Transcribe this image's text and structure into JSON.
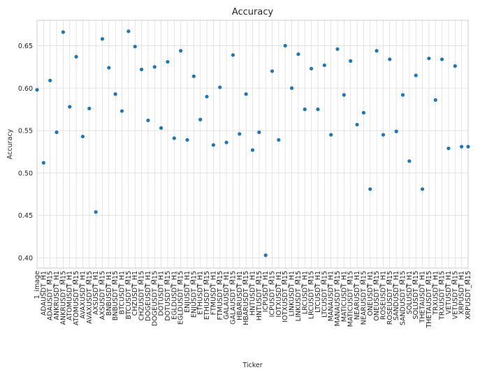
{
  "chart_data": {
    "type": "scatter",
    "title": "Accuracy",
    "xlabel": "Ticker",
    "ylabel": "Accuracy",
    "ylim": [
      0.388,
      0.68
    ],
    "yticks": [
      0.4,
      0.45,
      0.5,
      0.55,
      0.6,
      0.65
    ],
    "ytick_labels": [
      "0.40",
      "0.45",
      "0.50",
      "0.55",
      "0.60",
      "0.65"
    ],
    "grid": true,
    "marker_color": "#1f77b4",
    "categories": [
      "1_image",
      "ADAUSDT_H1",
      "ADAUSDT_M15",
      "ANKRUSDT_H1",
      "ANKRUSDT_M15",
      "ATOMUSDT_H1",
      "ATOMUSDT_M15",
      "AVAXUSDT_H1",
      "AVAXUSDT_M15",
      "AXSUSDT_H1",
      "AXSUSDT_M15",
      "BNBUSDT_H1",
      "BNBUSDT_M15",
      "BTCUSDT_H1",
      "BTCUSDT_M15",
      "CHZUSDT_H1",
      "CHZUSDT_M15",
      "DOGEUSDT_H1",
      "DOGEUSDT_M15",
      "DOTUSDT_H1",
      "DOTUSDT_M15",
      "EGLDUSDT_H1",
      "EGLDUSDT_M15",
      "ENJUSDT_H1",
      "ENJUSDT_M15",
      "ETHUSDT_H1",
      "ETHUSDT_M15",
      "FTMUSDT_H1",
      "FTMUSDT_M15",
      "GALAUSDT_H1",
      "GALAUSDT_M15",
      "HBARUSDT_H1",
      "HBARUSDT_M15",
      "HNTUSDT_H1",
      "HNTUSDT_M15",
      "ICPUSDT_H1",
      "ICPUSDT_M15",
      "IOTXUSDT_H1",
      "IOTXUSDT_M15",
      "LINKUSDT_H1",
      "LINKUSDT_M15",
      "LRCUSDT_H1",
      "LRCUSDT_M15",
      "LTCUSDT_H1",
      "LTCUSDT_M15",
      "MANAUSDT_H1",
      "MANAUSDT_M15",
      "MATICUSDT_H1",
      "MATICUSDT_M15",
      "NEARUSDT_H1",
      "NEARUSDT_M15",
      "ONEUSDT_H1",
      "ONEUSDT_M15",
      "ROSEUSDT_H1",
      "ROSEUSDT_M15",
      "SANDUSDT_H1",
      "SANDUSDT_M15",
      "SOLUSDT_H1",
      "SOLUSDT_M15",
      "THETAUSDT_H1",
      "THETAUSDT_M15",
      "TRXUSDT_H1",
      "TRXUSDT_M15",
      "VETUSDT_H1",
      "VETUSDT_M15",
      "XRPUSDT_H1",
      "XRPUSDT_M15"
    ],
    "values": [
      0.598,
      0.512,
      0.609,
      0.548,
      0.666,
      0.578,
      0.637,
      0.543,
      0.576,
      0.454,
      0.658,
      0.624,
      0.593,
      0.573,
      0.667,
      0.649,
      0.622,
      0.562,
      0.625,
      0.553,
      0.631,
      0.541,
      0.644,
      0.539,
      0.614,
      0.563,
      0.59,
      0.533,
      0.601,
      0.536,
      0.639,
      0.546,
      0.593,
      0.527,
      0.548,
      0.403,
      0.62,
      0.539,
      0.65,
      0.6,
      0.64,
      0.575,
      0.623,
      0.575,
      0.627,
      0.545,
      0.646,
      0.592,
      0.632,
      0.557,
      0.571,
      0.481,
      0.644,
      0.545,
      0.634,
      0.549,
      0.592,
      0.514,
      0.615,
      0.481,
      0.635,
      0.586,
      0.634,
      0.529,
      0.626,
      0.531,
      0.531
    ]
  }
}
